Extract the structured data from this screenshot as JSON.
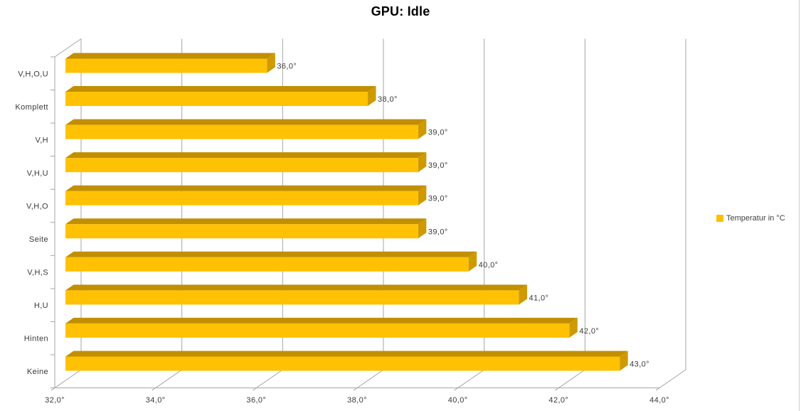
{
  "chart_data": {
    "type": "bar",
    "variant": "3d-horizontal-cylinderless",
    "title": "GPU: Idle",
    "categories": [
      "V,H,O,U",
      "Komplett",
      "V,H",
      "V,H,U",
      "V,H,O",
      "Seite",
      "V,H,S",
      "H,U",
      "Hinten",
      "Keine"
    ],
    "values": [
      36,
      38,
      39,
      39,
      39,
      39,
      40,
      41,
      42,
      43
    ],
    "data_labels": [
      "36,0°",
      "38,0°",
      "39,0°",
      "39,0°",
      "39,0°",
      "39,0°",
      "40,0°",
      "41,0°",
      "42,0°",
      "43,0°"
    ],
    "x_axis": {
      "min": 32,
      "max": 44,
      "ticks": [
        {
          "value": 32,
          "label": "32,0°"
        },
        {
          "value": 34,
          "label": "34,0°"
        },
        {
          "value": 36,
          "label": "36,0°"
        },
        {
          "value": 38,
          "label": "38,0°"
        },
        {
          "value": 40,
          "label": "40,0°"
        },
        {
          "value": 42,
          "label": "42,0°"
        },
        {
          "value": 44,
          "label": "44,0°"
        }
      ]
    },
    "legend": {
      "label": "Temperatur in °C",
      "position": "right",
      "swatch_color": "#FFC000"
    },
    "grid": true,
    "colors": {
      "bar_front": "#FFC103",
      "bar_top": "#C18F00",
      "bar_side": "#CE9A00",
      "axis_line": "#A6A6A6",
      "label_text": "#3A3A3A",
      "title_text": "#000000",
      "background": "#FFFFFF",
      "frame_border": "#CCCCCC"
    }
  }
}
